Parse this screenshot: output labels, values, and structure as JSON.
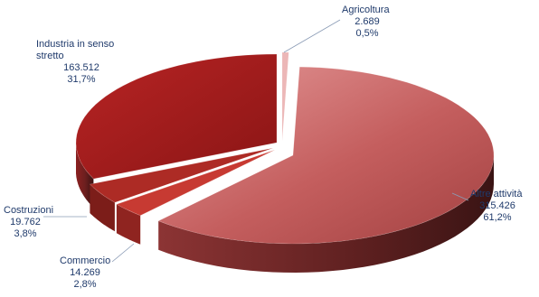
{
  "chart_data": {
    "type": "pie",
    "title": "",
    "labels": [
      "Agricoltura",
      "Altre attività",
      "Commercio",
      "Costruzioni",
      "Industria in senso stretto"
    ],
    "values": [
      2689,
      315426,
      14269,
      19762,
      163512
    ],
    "value_labels": [
      "2.689",
      "315.426",
      "14.269",
      "19.762",
      "163.512"
    ],
    "percent_labels": [
      "0,5%",
      "61,2%",
      "2,8%",
      "3,8%",
      "31,7%"
    ],
    "colors": [
      "#e6a8a8",
      "#c96a6a",
      "#c23a34",
      "#a82a24",
      "#9e1d1c"
    ],
    "style": "3d-exploded-pie"
  }
}
